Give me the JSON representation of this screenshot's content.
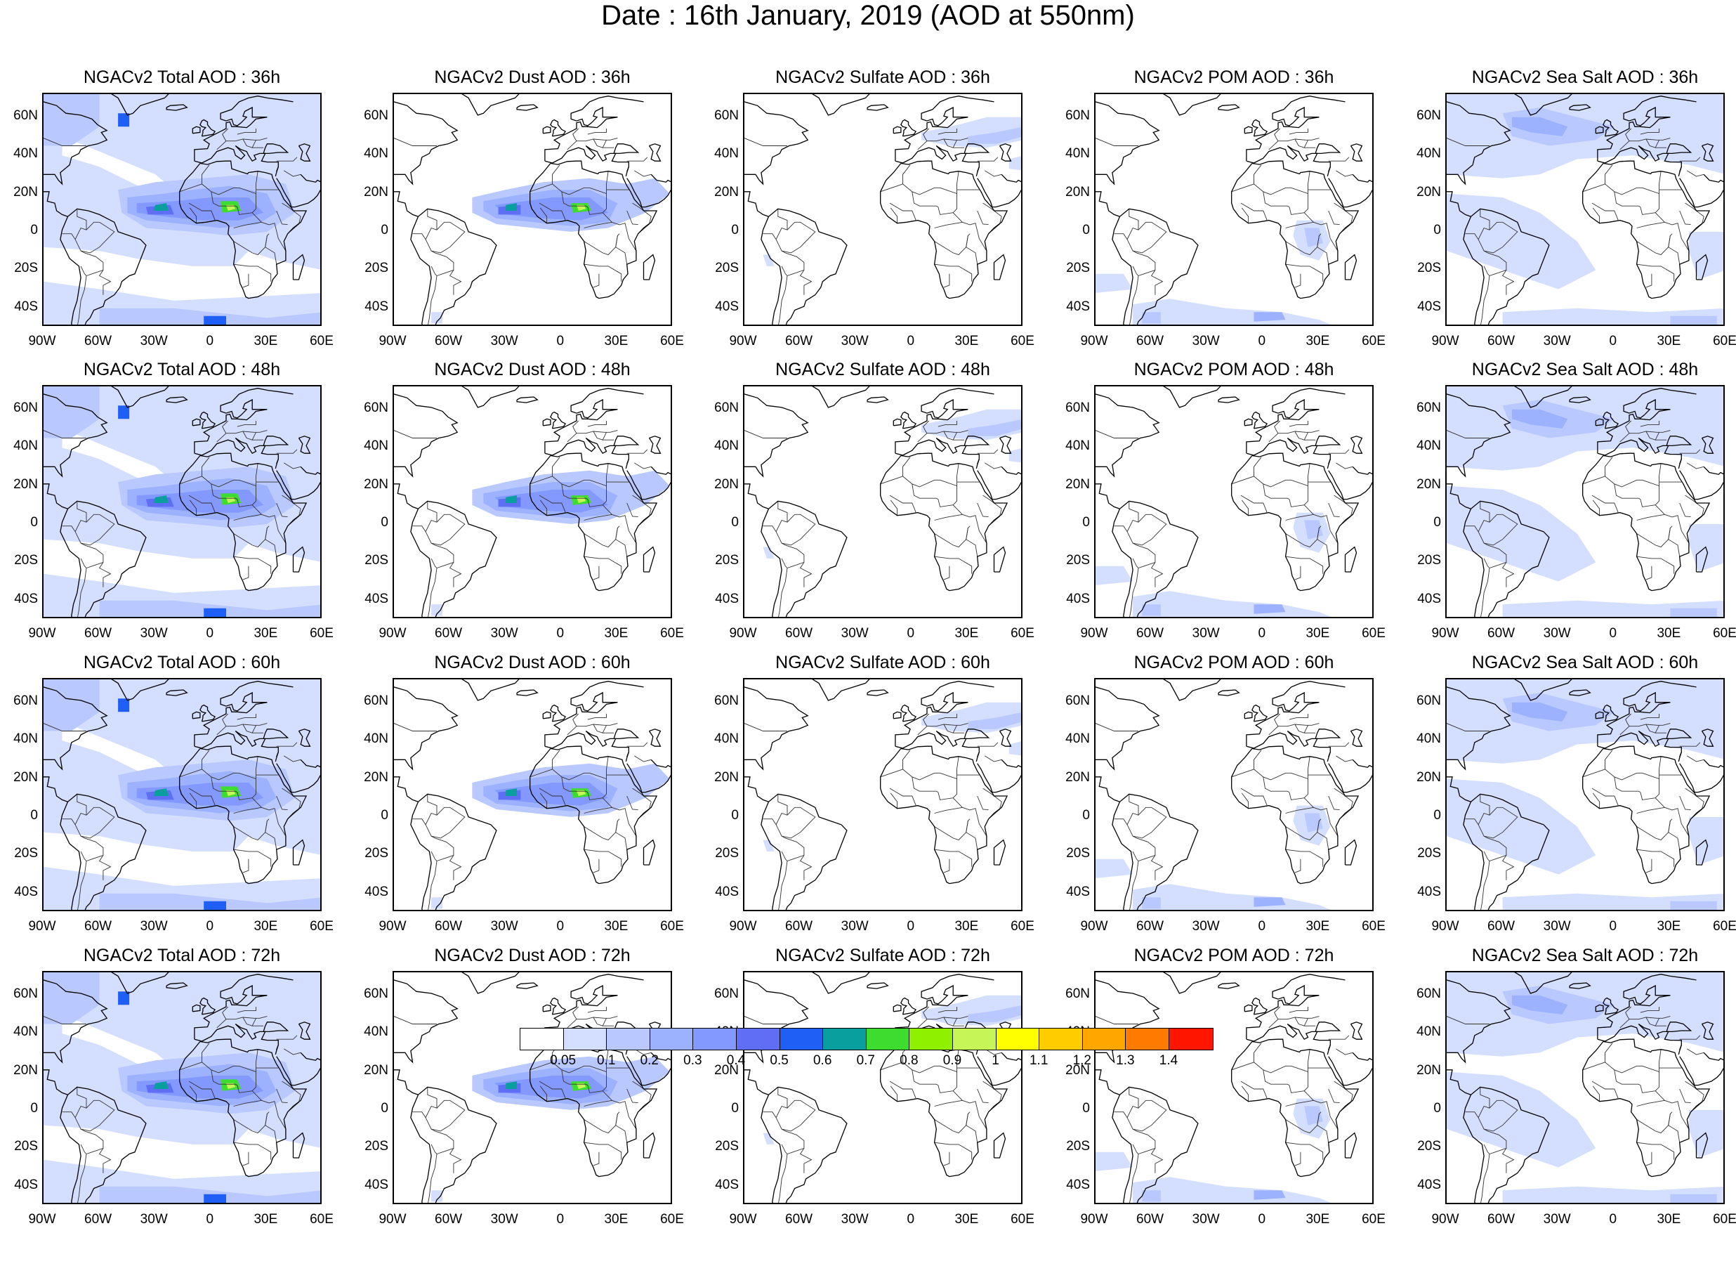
{
  "title": "Date : 16th January, 2019 (AOD at 550nm)",
  "rows": [
    {
      "panels": [
        {
          "title": "NGACv2 Total AOD : 36h",
          "species": "total"
        },
        {
          "title": "NGACv2 Dust AOD : 36h",
          "species": "dust"
        },
        {
          "title": "NGACv2 Sulfate AOD : 36h",
          "species": "sulfate"
        },
        {
          "title": "NGACv2 POM AOD : 36h",
          "species": "pom"
        },
        {
          "title": "NGACv2 Sea Salt AOD : 36h",
          "species": "seasalt"
        }
      ]
    },
    {
      "panels": [
        {
          "title": "NGACv2 Total AOD : 48h",
          "species": "total"
        },
        {
          "title": "NGACv2 Dust AOD : 48h",
          "species": "dust"
        },
        {
          "title": "NGACv2 Sulfate AOD : 48h",
          "species": "sulfate"
        },
        {
          "title": "NGACv2 POM AOD : 48h",
          "species": "pom"
        },
        {
          "title": "NGACv2 Sea Salt AOD : 48h",
          "species": "seasalt"
        }
      ]
    },
    {
      "panels": [
        {
          "title": "NGACv2 Total AOD : 60h",
          "species": "total"
        },
        {
          "title": "NGACv2 Dust AOD : 60h",
          "species": "dust"
        },
        {
          "title": "NGACv2 Sulfate AOD : 60h",
          "species": "sulfate"
        },
        {
          "title": "NGACv2 POM AOD : 60h",
          "species": "pom"
        },
        {
          "title": "NGACv2 Sea Salt AOD : 60h",
          "species": "seasalt"
        }
      ]
    },
    {
      "panels": [
        {
          "title": "NGACv2 Total AOD : 72h",
          "species": "total"
        },
        {
          "title": "NGACv2 Dust AOD : 72h",
          "species": "dust"
        },
        {
          "title": "NGACv2 Sulfate AOD : 72h",
          "species": "sulfate"
        },
        {
          "title": "NGACv2 POM AOD : 72h",
          "species": "pom"
        },
        {
          "title": "NGACv2 Sea Salt  AOD : 72h",
          "species": "seasalt"
        }
      ]
    }
  ],
  "lat_labels": [
    "60N",
    "40N",
    "20N",
    "0",
    "20S",
    "40S"
  ],
  "lon_labels": [
    "90W",
    "60W",
    "30W",
    "0",
    "30E",
    "60E"
  ],
  "colorbar": {
    "colors": [
      "#ffffff",
      "#d4deff",
      "#b9c9ff",
      "#9db2ff",
      "#8399ff",
      "#5f6ef5",
      "#1f5ff5",
      "#0a9f9f",
      "#3ddc2e",
      "#8ff000",
      "#c6f558",
      "#ffff00",
      "#ffcc00",
      "#ffa600",
      "#ff7a00",
      "#ff1500"
    ],
    "labels": [
      "0.05",
      "0.1",
      "0.2",
      "0.3",
      "0.4",
      "0.5",
      "0.6",
      "0.7",
      "0.8",
      "0.9",
      "1",
      "1.1",
      "1.2",
      "1.3",
      "1.4"
    ]
  }
}
